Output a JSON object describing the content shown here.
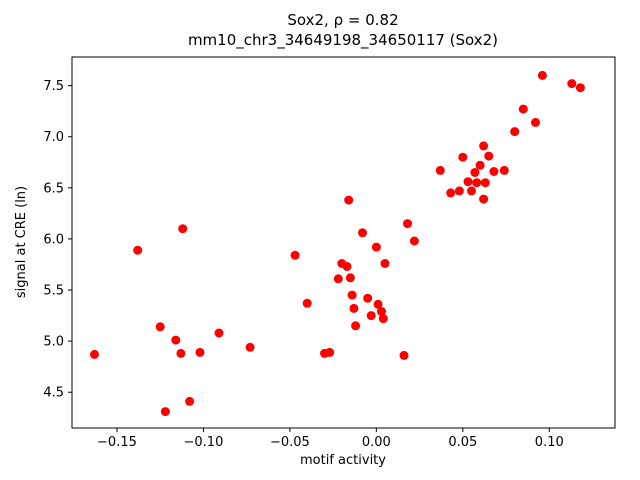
{
  "figure": {
    "background": "#ffffff"
  },
  "chart_data": {
    "type": "scatter",
    "title": "Sox2, ρ = 0.82",
    "subtitle": "mm10_chr3_34649198_34650117 (Sox2)",
    "xlabel": "motif activity",
    "ylabel": "signal at CRE (ln)",
    "marker_color": "#ff0000",
    "marker_radius": 4.5,
    "grid": false,
    "legend": "none",
    "xlim": [
      -0.176,
      0.138
    ],
    "ylim": [
      4.15,
      7.78
    ],
    "xticks": [
      -0.15,
      -0.1,
      -0.05,
      0.0,
      0.05,
      0.1
    ],
    "yticks": [
      4.5,
      5.0,
      5.5,
      6.0,
      6.5,
      7.0,
      7.5
    ],
    "points": [
      [
        -0.163,
        4.87
      ],
      [
        -0.138,
        5.89
      ],
      [
        -0.125,
        5.14
      ],
      [
        -0.122,
        4.31
      ],
      [
        -0.116,
        5.01
      ],
      [
        -0.113,
        4.88
      ],
      [
        -0.112,
        6.1
      ],
      [
        -0.108,
        4.41
      ],
      [
        -0.102,
        4.89
      ],
      [
        -0.091,
        5.08
      ],
      [
        -0.073,
        4.94
      ],
      [
        -0.047,
        5.84
      ],
      [
        -0.04,
        5.37
      ],
      [
        -0.03,
        4.88
      ],
      [
        -0.027,
        4.89
      ],
      [
        -0.022,
        5.61
      ],
      [
        -0.02,
        5.76
      ],
      [
        -0.017,
        5.73
      ],
      [
        -0.016,
        6.38
      ],
      [
        -0.015,
        5.62
      ],
      [
        -0.014,
        5.45
      ],
      [
        -0.013,
        5.32
      ],
      [
        -0.012,
        5.15
      ],
      [
        -0.008,
        6.06
      ],
      [
        -0.005,
        5.42
      ],
      [
        -0.003,
        5.25
      ],
      [
        0.0,
        5.92
      ],
      [
        0.001,
        5.36
      ],
      [
        0.003,
        5.29
      ],
      [
        0.004,
        5.22
      ],
      [
        0.005,
        5.76
      ],
      [
        0.016,
        4.86
      ],
      [
        0.018,
        6.15
      ],
      [
        0.022,
        5.98
      ],
      [
        0.037,
        6.67
      ],
      [
        0.043,
        6.45
      ],
      [
        0.048,
        6.47
      ],
      [
        0.05,
        6.8
      ],
      [
        0.053,
        6.56
      ],
      [
        0.055,
        6.47
      ],
      [
        0.057,
        6.65
      ],
      [
        0.058,
        6.55
      ],
      [
        0.06,
        6.72
      ],
      [
        0.062,
        6.91
      ],
      [
        0.062,
        6.39
      ],
      [
        0.063,
        6.55
      ],
      [
        0.065,
        6.81
      ],
      [
        0.068,
        6.66
      ],
      [
        0.074,
        6.67
      ],
      [
        0.08,
        7.05
      ],
      [
        0.085,
        7.27
      ],
      [
        0.092,
        7.14
      ],
      [
        0.096,
        7.6
      ],
      [
        0.113,
        7.52
      ],
      [
        0.118,
        7.48
      ]
    ]
  }
}
